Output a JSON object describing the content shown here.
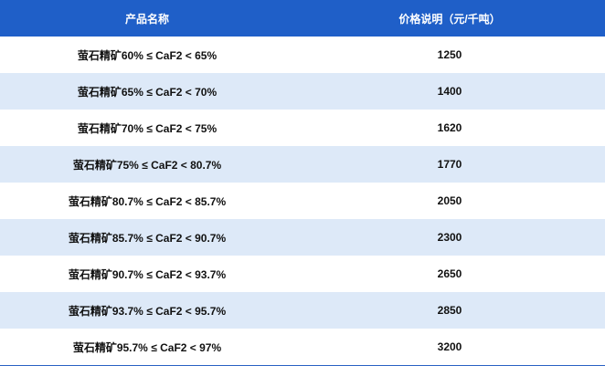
{
  "table": {
    "header": [
      "产品名称",
      "价格说明（元/千吨）"
    ],
    "rows": [
      [
        "萤石精矿60% ≤ CaF2 < 65%",
        1250
      ],
      [
        "萤石精矿65% ≤ CaF2 < 70%",
        1400
      ],
      [
        "萤石精矿70% ≤ CaF2 < 75%",
        1620
      ],
      [
        "萤石精矿75% ≤ CaF2 < 80.7%",
        1770
      ],
      [
        "萤石精矿80.7% ≤ CaF2 < 85.7%",
        2050
      ],
      [
        "萤石精矿85.7% ≤ CaF2 < 90.7%",
        2300
      ],
      [
        "萤石精矿90.7% ≤ CaF2 < 93.7%",
        2650
      ],
      [
        "萤石精矿93.7% ≤ CaF2 < 95.7%",
        2850
      ],
      [
        "萤石精矿95.7% ≤ CaF2 < 97%",
        3200
      ]
    ]
  }
}
